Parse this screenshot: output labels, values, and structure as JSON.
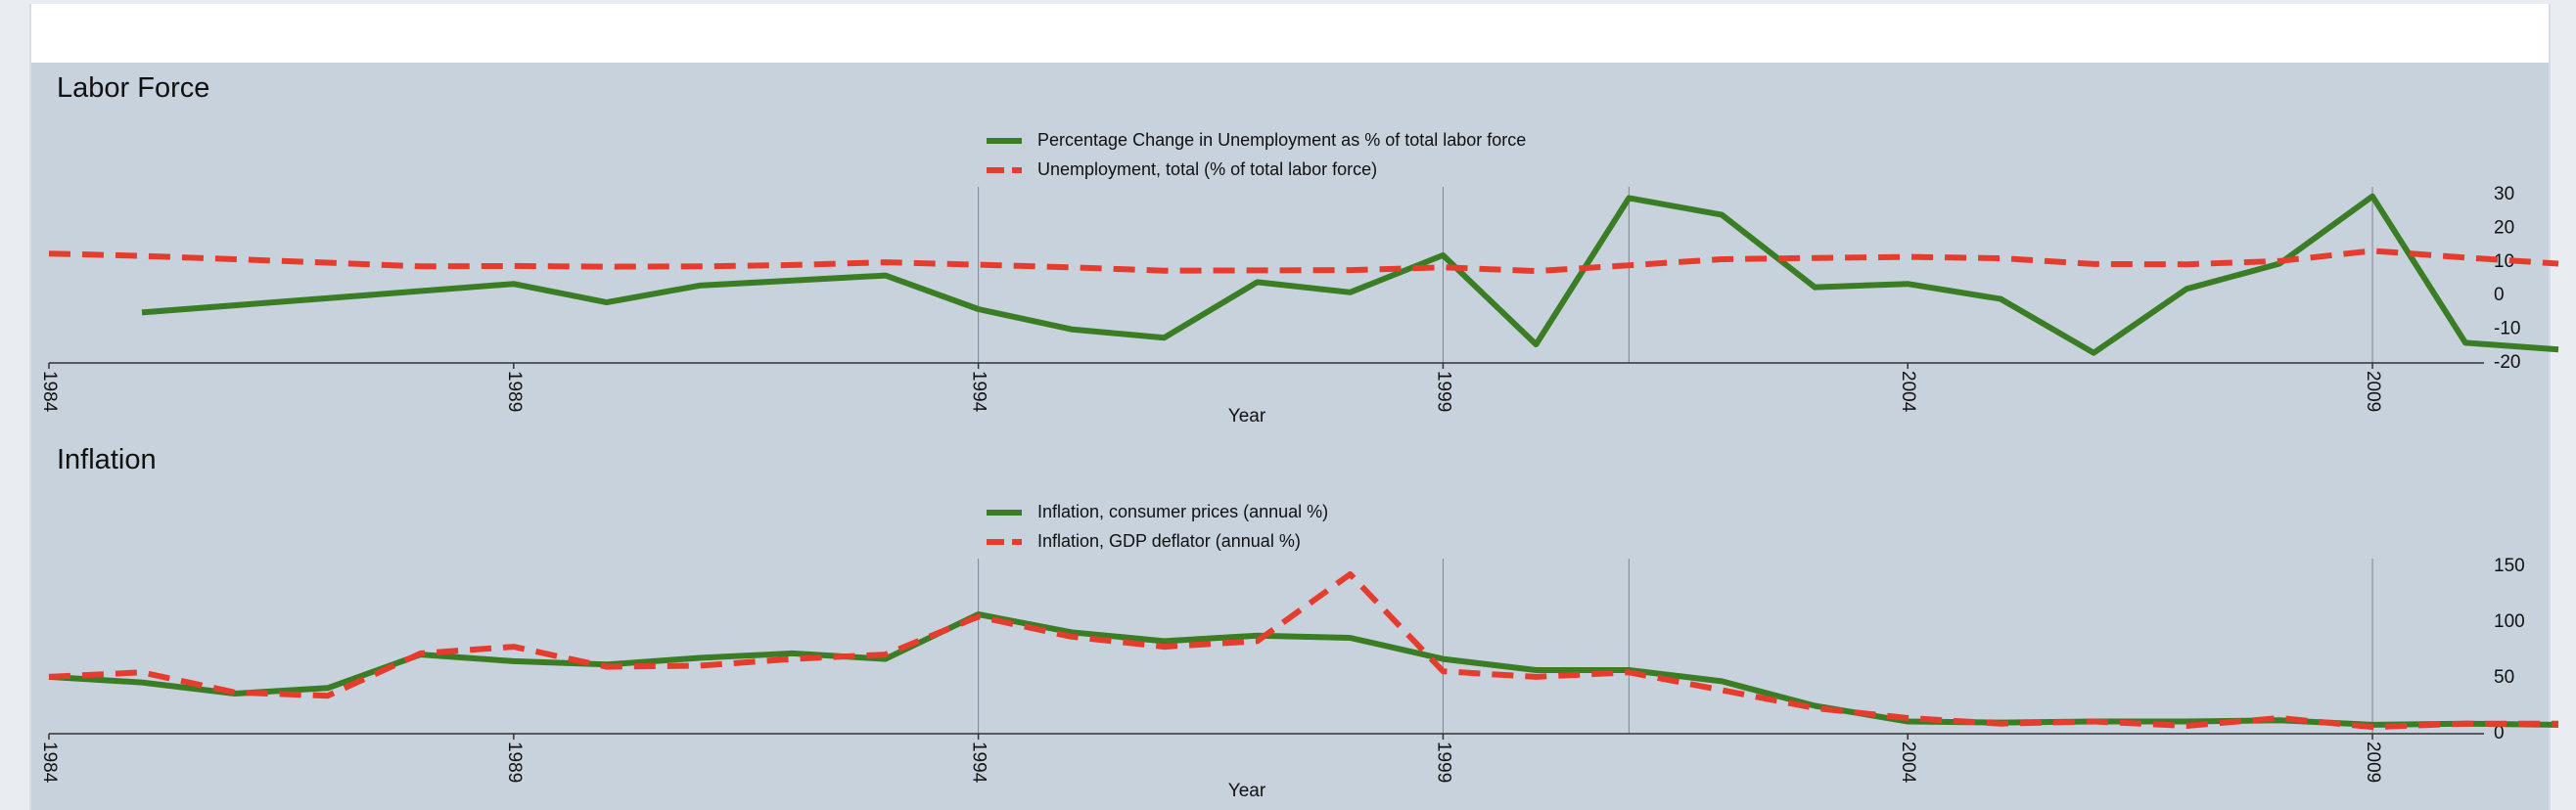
{
  "chart_data": [
    {
      "type": "line",
      "title": "Labor Force",
      "xlabel": "Year",
      "ylabel": "",
      "x_ticks": [
        "1984",
        "1989",
        "1994",
        "1999",
        "2004",
        "2009"
      ],
      "y_ticks": [
        "30",
        "20",
        "10",
        "0",
        "-10",
        "-20"
      ],
      "xlim": [
        1984,
        2010.2
      ],
      "ylim": [
        -20,
        30
      ],
      "vertical_gridlines_at": [
        1994,
        1999,
        2001,
        2009
      ],
      "legend_position": "top-center",
      "series": [
        {
          "name": "Percentage Change in Unemployment as % of total labor force",
          "style": "solid",
          "color": "#3a7d24",
          "x": [
            1985,
            1989,
            1990,
            1991,
            1992,
            1993,
            1994,
            1995,
            1996,
            1997,
            1998,
            1999,
            2000,
            2001,
            2002,
            2003,
            2004,
            2005,
            2006,
            2007,
            2008,
            2009,
            2010,
            2011
          ],
          "values": [
            -5,
            3.5,
            -2,
            3,
            4.5,
            6,
            -4,
            -10,
            -12.5,
            4,
            1,
            12,
            -14.5,
            29,
            24,
            2.5,
            3.5,
            -1,
            -17,
            2,
            9.5,
            29.5,
            -14,
            -16
          ]
        },
        {
          "name": "Unemployment, total (% of total labor force)",
          "style": "dashed",
          "color": "#e63c2e",
          "x": [
            1984,
            1985,
            1986,
            1987,
            1988,
            1989,
            1990,
            1991,
            1992,
            1993,
            1994,
            1995,
            1996,
            1997,
            1998,
            1999,
            2000,
            2001,
            2002,
            2003,
            2004,
            2005,
            2006,
            2007,
            2008,
            2009,
            2010,
            2011
          ],
          "values": [
            12.5,
            11.8,
            10.8,
            9.8,
            8.7,
            8.8,
            8.6,
            8.7,
            9.1,
            9.9,
            9.2,
            8.4,
            7.4,
            7.5,
            7.6,
            8.4,
            7.3,
            9.0,
            10.8,
            11.2,
            11.5,
            11.1,
            9.4,
            9.3,
            10.3,
            13.3,
            11.3,
            9.5
          ]
        }
      ]
    },
    {
      "type": "line",
      "title": "Inflation",
      "xlabel": "Year",
      "ylabel": "",
      "x_ticks": [
        "1984",
        "1989",
        "1994",
        "1999",
        "2004",
        "2009"
      ],
      "y_ticks": [
        "150",
        "100",
        "50",
        "0"
      ],
      "xlim": [
        1984,
        2010.2
      ],
      "ylim": [
        0,
        150
      ],
      "vertical_gridlines_at": [
        1994,
        1999,
        2001,
        2009
      ],
      "legend_position": "top-center",
      "series": [
        {
          "name": "Inflation, consumer prices (annual %)",
          "style": "solid",
          "color": "#3a7d24",
          "x": [
            1984,
            1985,
            1986,
            1987,
            1988,
            1989,
            1990,
            1991,
            1992,
            1993,
            1994,
            1995,
            1996,
            1997,
            1998,
            1999,
            2000,
            2001,
            2002,
            2003,
            2004,
            2005,
            2006,
            2007,
            2008,
            2009,
            2010,
            2011
          ],
          "values": [
            51,
            46,
            36,
            41,
            71,
            65,
            62,
            68,
            72,
            67,
            107,
            91,
            83,
            88,
            86,
            67,
            57,
            57,
            47,
            25,
            11,
            10,
            11,
            11,
            12,
            8,
            9,
            8
          ]
        },
        {
          "name": "Inflation, GDP deflator (annual %)",
          "style": "dashed",
          "color": "#e63c2e",
          "x": [
            1984,
            1985,
            1986,
            1987,
            1988,
            1989,
            1990,
            1991,
            1992,
            1993,
            1994,
            1995,
            1996,
            1997,
            1998,
            1999,
            2000,
            2001,
            2002,
            2003,
            2004,
            2005,
            2006,
            2007,
            2008,
            2009,
            2010,
            2011
          ],
          "values": [
            51,
            55,
            37,
            34,
            72,
            78,
            60,
            61,
            67,
            71,
            105,
            87,
            78,
            83,
            143,
            56,
            51,
            55,
            39,
            23,
            14,
            9,
            11,
            7,
            14,
            6,
            9,
            9
          ]
        }
      ]
    }
  ],
  "colors": {
    "panel_background": "#c8d2dd",
    "solid_series": "#3a7d24",
    "dashed_series": "#e63c2e"
  }
}
